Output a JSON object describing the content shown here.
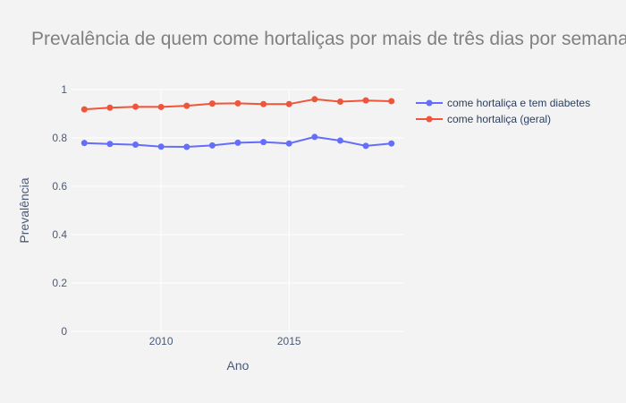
{
  "chart_data": {
    "type": "line",
    "title": "Prevalência de quem come hortaliças por mais de três dias por semana",
    "xlabel": "Ano",
    "ylabel": "Prevalência",
    "xlim": [
      2006.5,
      2019.5
    ],
    "ylim": [
      0,
      1
    ],
    "xticks": [
      2010,
      2015
    ],
    "yticks": [
      0,
      0.2,
      0.4,
      0.6,
      0.8,
      1
    ],
    "ytick_labels": [
      "0",
      "0.2",
      "0.4",
      "0.6",
      "0.8",
      "1"
    ],
    "grid": true,
    "legend_position": "top-right",
    "x": [
      2007,
      2008,
      2009,
      2010,
      2011,
      2012,
      2013,
      2014,
      2015,
      2016,
      2017,
      2018,
      2019
    ],
    "series": [
      {
        "name": "come hortaliça e tem diabetes",
        "color": "#636efa",
        "values": [
          0.779,
          0.775,
          0.772,
          0.764,
          0.763,
          0.769,
          0.78,
          0.783,
          0.777,
          0.804,
          0.789,
          0.767,
          0.777
        ]
      },
      {
        "name": "come hortaliça (geral)",
        "color": "#ef553b",
        "values": [
          0.918,
          0.925,
          0.929,
          0.928,
          0.933,
          0.942,
          0.943,
          0.94,
          0.94,
          0.96,
          0.95,
          0.955,
          0.952
        ]
      }
    ]
  }
}
